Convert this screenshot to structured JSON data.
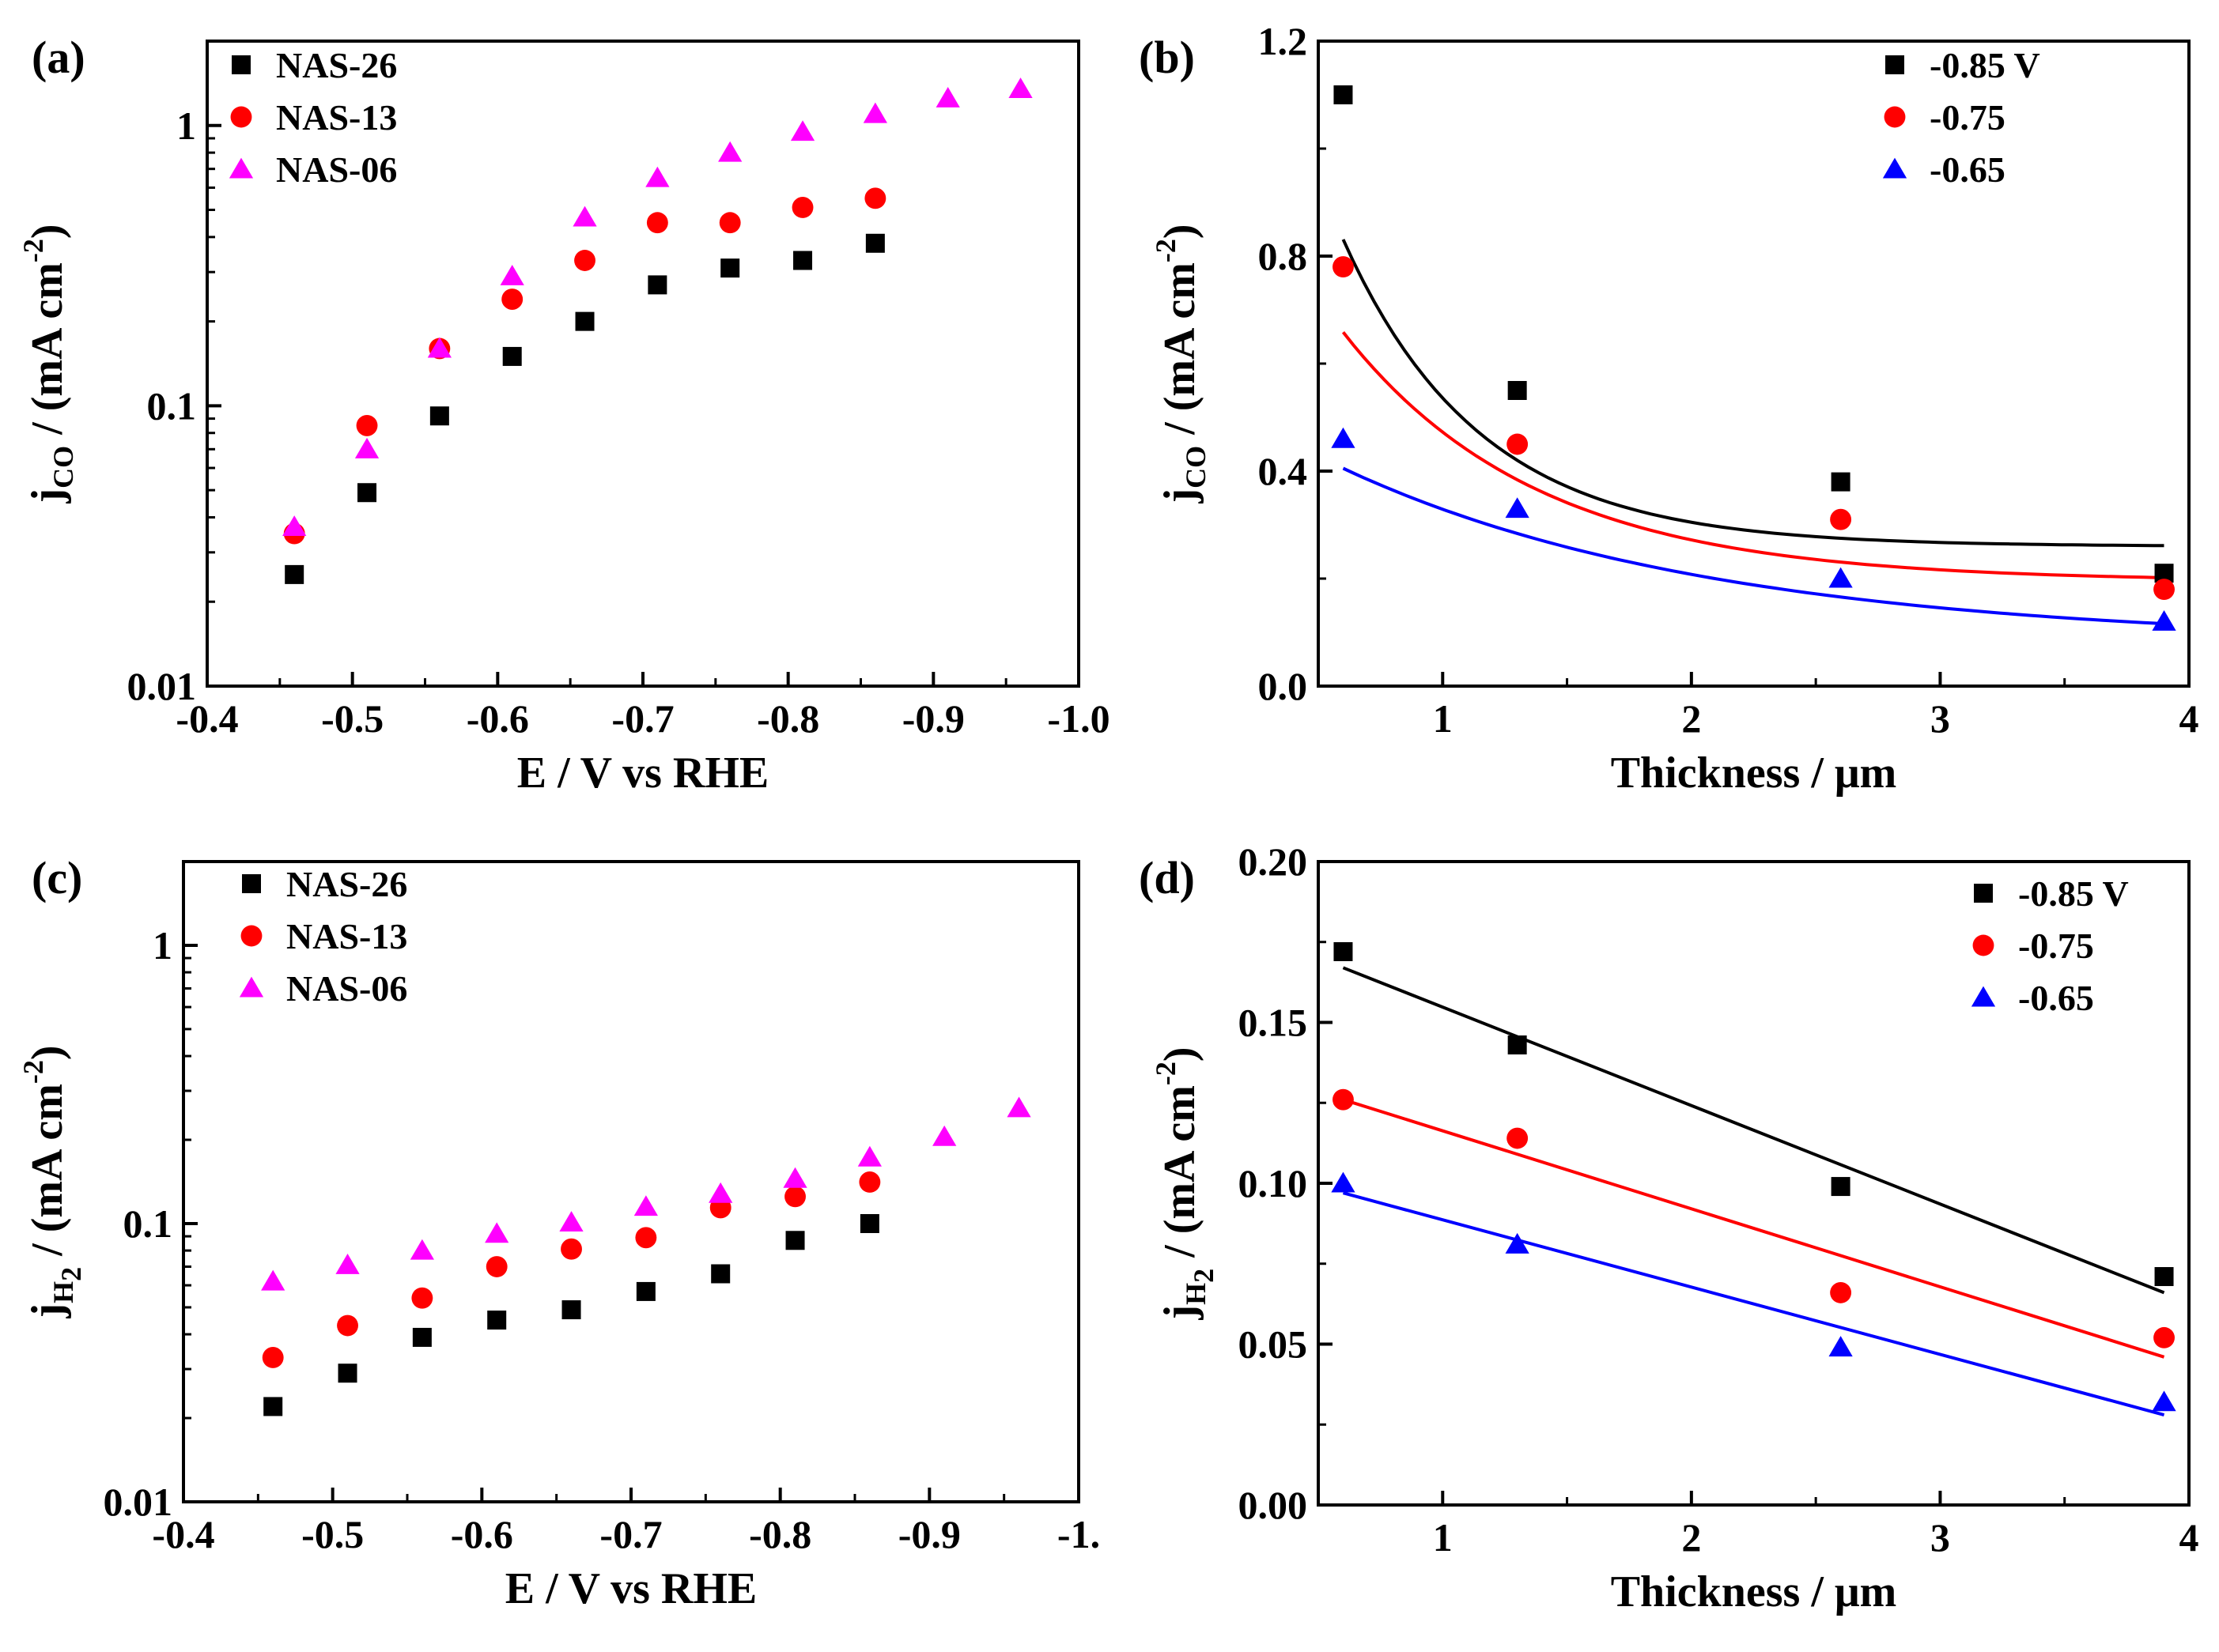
{
  "chart_data": [
    {
      "type": "scatter",
      "panel_label": "(a)",
      "yscale": "log",
      "xlabel": "E / V vs RHE",
      "ylabel": {
        "main": "j",
        "subscript": "CO",
        "tail": " / (mA cm",
        "sup": "-2",
        "close": ")"
      },
      "xlim": [
        -0.4,
        -1.0
      ],
      "ylim": [
        0.01,
        2
      ],
      "x_ticks": [
        -0.4,
        -0.5,
        -0.6,
        -0.7,
        -0.8,
        -0.9,
        -1.0
      ],
      "x_tick_labels": [
        "-0.4",
        "-0.5",
        "-0.6",
        "-0.7",
        "-0.8",
        "-0.9",
        "-1.0"
      ],
      "y_ticks": [
        0.01,
        0.1,
        1
      ],
      "y_tick_labels": [
        "0.01",
        "0.1",
        "1"
      ],
      "legend": "top-left",
      "series": [
        {
          "name": "NAS-26",
          "marker": "square",
          "color": "#000000",
          "x": [
            -0.46,
            -0.51,
            -0.56,
            -0.61,
            -0.66,
            -0.71,
            -0.76,
            -0.81,
            -0.86
          ],
          "y": [
            0.025,
            0.049,
            0.092,
            0.15,
            0.2,
            0.27,
            0.31,
            0.33,
            0.38
          ]
        },
        {
          "name": "NAS-13",
          "marker": "circle",
          "color": "#ff0000",
          "x": [
            -0.46,
            -0.51,
            -0.56,
            -0.61,
            -0.66,
            -0.71,
            -0.76,
            -0.81,
            -0.86
          ],
          "y": [
            0.035,
            0.085,
            0.16,
            0.24,
            0.33,
            0.45,
            0.45,
            0.51,
            0.55
          ]
        },
        {
          "name": "NAS-06",
          "marker": "triangle",
          "color": "#ff00ff",
          "x": [
            -0.46,
            -0.51,
            -0.56,
            -0.61,
            -0.66,
            -0.71,
            -0.76,
            -0.81,
            -0.86,
            -0.91,
            -0.96
          ],
          "y": [
            0.037,
            0.07,
            0.16,
            0.29,
            0.47,
            0.65,
            0.8,
            0.95,
            1.1,
            1.25,
            1.35
          ]
        }
      ]
    },
    {
      "type": "scatter",
      "panel_label": "(b)",
      "yscale": "linear",
      "xlabel": "Thickness / μm",
      "ylabel": {
        "main": "j",
        "subscript": "CO",
        "tail": " / (mA cm",
        "sup": "-2",
        "close": ")"
      },
      "xlim": [
        0.5,
        4.0
      ],
      "ylim": [
        0.0,
        1.2
      ],
      "x_ticks": [
        1,
        2,
        3,
        4
      ],
      "x_tick_labels": [
        "1",
        "2",
        "3",
        "4"
      ],
      "y_ticks": [
        0.0,
        0.4,
        0.8,
        1.2
      ],
      "y_tick_labels": [
        "0.0",
        "0.4",
        "0.8",
        "1.2"
      ],
      "legend": "top-right",
      "series": [
        {
          "name": "-0.85 V",
          "marker": "square",
          "color": "#000000",
          "x": [
            0.6,
            1.3,
            2.6,
            3.9
          ],
          "y": [
            1.1,
            0.55,
            0.38,
            0.21
          ],
          "fit": {
            "model": "exponential",
            "y0": 0.26,
            "A": 1.7,
            "t": 0.55
          }
        },
        {
          "name": "-0.75",
          "marker": "circle",
          "color": "#ff0000",
          "x": [
            0.6,
            1.3,
            2.6,
            3.9
          ],
          "y": [
            0.78,
            0.45,
            0.31,
            0.18
          ],
          "fit": {
            "model": "exponential",
            "y0": 0.195,
            "A": 1.0,
            "t": 0.78
          }
        },
        {
          "name": "-0.65",
          "marker": "triangle",
          "color": "#0000ff",
          "x": [
            0.6,
            1.3,
            2.6,
            3.9
          ],
          "y": [
            0.46,
            0.33,
            0.2,
            0.12
          ],
          "fit": {
            "model": "exponential",
            "y0": 0.08,
            "A": 0.485,
            "t": 1.5
          }
        }
      ]
    },
    {
      "type": "scatter",
      "panel_label": "(c)",
      "yscale": "log",
      "xlabel": "E / V vs RHE",
      "ylabel": {
        "main": "j",
        "subscript": "H",
        "subsub": "2",
        "tail": " / (mA cm",
        "sup": "-2",
        "close": ")"
      },
      "xlim": [
        -0.4,
        -1.0
      ],
      "ylim": [
        0.01,
        2
      ],
      "x_ticks": [
        -0.4,
        -0.5,
        -0.6,
        -0.7,
        -0.8,
        -0.9,
        -1.0
      ],
      "x_tick_labels": [
        "-0.4",
        "-0.5",
        "-0.6",
        "-0.7",
        "-0.8",
        "-0.9",
        "-1."
      ],
      "y_ticks": [
        0.01,
        0.1,
        1
      ],
      "y_tick_labels": [
        "0.01",
        "0.1",
        "1"
      ],
      "legend": "top-left",
      "series": [
        {
          "name": "NAS-26",
          "marker": "square",
          "color": "#000000",
          "x": [
            -0.46,
            -0.51,
            -0.56,
            -0.61,
            -0.66,
            -0.71,
            -0.76,
            -0.81,
            -0.86
          ],
          "y": [
            0.022,
            0.029,
            0.039,
            0.045,
            0.049,
            0.057,
            0.066,
            0.087,
            0.1
          ]
        },
        {
          "name": "NAS-13",
          "marker": "circle",
          "color": "#ff0000",
          "x": [
            -0.46,
            -0.51,
            -0.56,
            -0.61,
            -0.66,
            -0.71,
            -0.76,
            -0.81,
            -0.86
          ],
          "y": [
            0.033,
            0.043,
            0.054,
            0.07,
            0.081,
            0.089,
            0.114,
            0.125,
            0.141
          ]
        },
        {
          "name": "NAS-06",
          "marker": "triangle",
          "color": "#ff00ff",
          "x": [
            -0.46,
            -0.51,
            -0.56,
            -0.61,
            -0.66,
            -0.71,
            -0.76,
            -0.81,
            -0.86,
            -0.91,
            -0.96
          ],
          "y": [
            0.062,
            0.071,
            0.08,
            0.092,
            0.101,
            0.115,
            0.128,
            0.145,
            0.173,
            0.205,
            0.26
          ]
        }
      ]
    },
    {
      "type": "scatter",
      "panel_label": "(d)",
      "yscale": "linear",
      "xlabel": "Thickness / μm",
      "ylabel": {
        "main": "j",
        "subscript": "H",
        "subsub": "2",
        "tail": " / (mA cm",
        "sup": "-2",
        "close": ")"
      },
      "xlim": [
        0.5,
        4.0
      ],
      "ylim": [
        0.0,
        0.2
      ],
      "x_ticks": [
        1,
        2,
        3,
        4
      ],
      "x_tick_labels": [
        "1",
        "2",
        "3",
        "4"
      ],
      "y_ticks": [
        0.0,
        0.05,
        0.1,
        0.15,
        0.2
      ],
      "y_tick_labels": [
        "0.00",
        "0.05",
        "0.10",
        "0.15",
        "0.20"
      ],
      "legend": "top-right",
      "series": [
        {
          "name": "-0.85 V",
          "marker": "square",
          "color": "#000000",
          "x": [
            0.6,
            1.3,
            2.6,
            3.9
          ],
          "y": [
            0.172,
            0.143,
            0.099,
            0.071
          ],
          "fit": {
            "model": "linear",
            "x0": 0.6,
            "y_start": 0.167,
            "x1": 3.9,
            "y_end": 0.066
          }
        },
        {
          "name": "-0.75",
          "marker": "circle",
          "color": "#ff0000",
          "x": [
            0.6,
            1.3,
            2.6,
            3.9
          ],
          "y": [
            0.126,
            0.114,
            0.066,
            0.052
          ],
          "fit": {
            "model": "linear",
            "x0": 0.6,
            "y_start": 0.126,
            "x1": 3.9,
            "y_end": 0.046
          }
        },
        {
          "name": "-0.65",
          "marker": "triangle",
          "color": "#0000ff",
          "x": [
            0.6,
            1.3,
            2.6,
            3.9
          ],
          "y": [
            0.1,
            0.081,
            0.049,
            0.032
          ],
          "fit": {
            "model": "linear",
            "x0": 0.6,
            "y_start": 0.097,
            "x1": 3.9,
            "y_end": 0.028
          }
        }
      ]
    }
  ]
}
